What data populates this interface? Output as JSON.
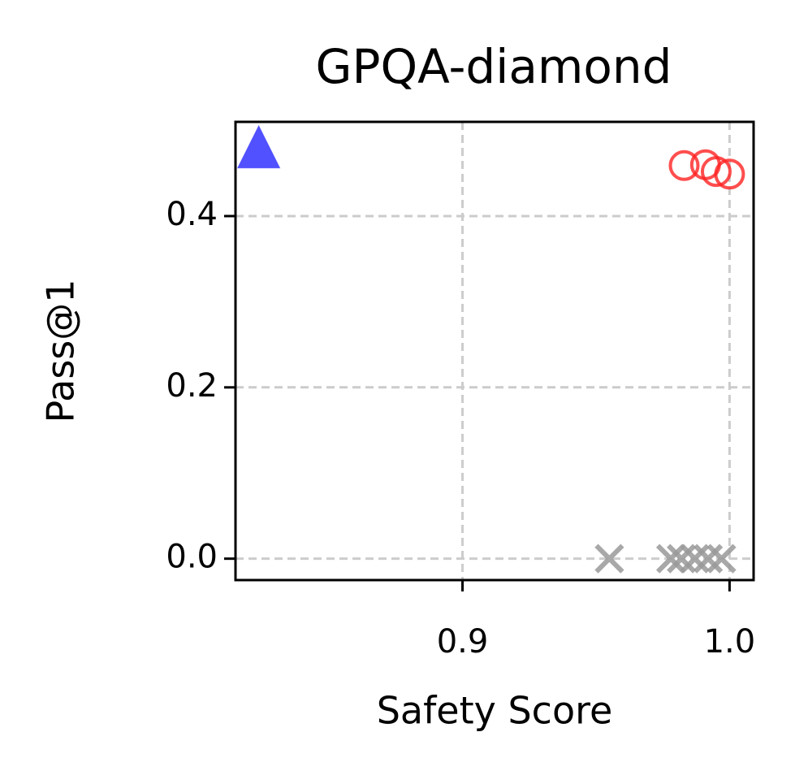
{
  "chart_data": {
    "type": "scatter",
    "title": "GPQA-diamond",
    "xlabel": "Safety Score",
    "ylabel": "Pass@1",
    "xlim": [
      0.815,
      1.009
    ],
    "ylim": [
      -0.025,
      0.51
    ],
    "xticks": [
      0.9,
      {
        "value": 1.0,
        "label": "1.0"
      }
    ],
    "yticks": [
      {
        "value": 0.0,
        "label": "0.0"
      },
      0.2,
      0.4
    ],
    "grid": true,
    "series": [
      {
        "color": "#3333ff",
        "marker": "triangle",
        "x": [
          0.8237
        ],
        "values": [
          0.477
        ]
      },
      {
        "color": "#ff2222",
        "marker": "circle",
        "x": [
          0.983,
          0.991,
          0.995,
          1.0
        ],
        "values": [
          0.459,
          0.46,
          0.452,
          0.449
        ]
      },
      {
        "color": "#999999",
        "marker": "x",
        "x": [
          0.955,
          0.978,
          0.982,
          0.987,
          0.992,
          0.997
        ],
        "values": [
          0,
          0,
          0,
          0,
          0,
          0
        ]
      }
    ]
  }
}
